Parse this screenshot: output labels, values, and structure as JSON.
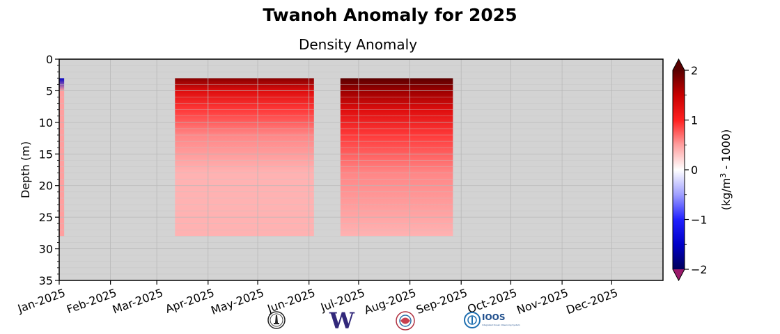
{
  "chart_data": {
    "type": "heatmap",
    "title": "Twanoh Anomaly for 2025",
    "subtitle": "Density Anomaly",
    "ylabel": "Depth (m)",
    "ylim": [
      0,
      35
    ],
    "y_ticks": [
      "0",
      "5",
      "10",
      "15",
      "20",
      "25",
      "30",
      "35"
    ],
    "x_ticks": [
      "Jan-2025",
      "Feb-2025",
      "Mar-2025",
      "Apr-2025",
      "May-2025",
      "Jun-2025",
      "Jul-2025",
      "Aug-2025",
      "Sep-2025",
      "Oct-2025",
      "Nov-2025",
      "Dec-2025"
    ],
    "grid": true,
    "colorbar": {
      "label_prefix": "(kg/m",
      "label_sup": "3",
      "label_suffix": " - 1000)",
      "range": [
        -2,
        2
      ],
      "ticks": [
        "2",
        "1",
        "0",
        "−1",
        "−2"
      ],
      "colors": [
        "#5a0000",
        "#c80000",
        "#ff2020",
        "#ff9f9f",
        "#ffffff",
        "#9f9fff",
        "#2020ff",
        "#0000c8",
        "#00005a"
      ],
      "over_color": "#5a0000",
      "under_color": "#9b1a6b"
    },
    "no_data_color": "#d3d3d3",
    "data_blocks": [
      {
        "name": "early January profile",
        "start": "2025-01-01",
        "end": "2025-01-04",
        "depth_range": [
          3,
          28
        ],
        "profile": [
          {
            "depth": 3,
            "anomaly": -1.5
          },
          {
            "depth": 5,
            "anomaly": 0.5
          },
          {
            "depth": 10,
            "anomaly": 0.5
          },
          {
            "depth": 20,
            "anomaly": 0.5
          },
          {
            "depth": 28,
            "anomaly": 0.5
          }
        ]
      },
      {
        "name": "mid-March to early June",
        "start": "2025-03-12",
        "end": "2025-06-04",
        "depth_range": [
          3,
          28
        ],
        "profile": [
          {
            "depth": 3,
            "anomaly": 1.8
          },
          {
            "depth": 5,
            "anomaly": 1.3
          },
          {
            "depth": 8,
            "anomaly": 0.9
          },
          {
            "depth": 12,
            "anomaly": 0.6
          },
          {
            "depth": 18,
            "anomaly": 0.4
          },
          {
            "depth": 28,
            "anomaly": 0.4
          }
        ]
      },
      {
        "name": "late June to late August",
        "start": "2025-06-20",
        "end": "2025-08-27",
        "depth_range": [
          3,
          28
        ],
        "profile": [
          {
            "depth": 3,
            "anomaly": 2.0
          },
          {
            "depth": 5,
            "anomaly": 1.7
          },
          {
            "depth": 8,
            "anomaly": 1.3
          },
          {
            "depth": 12,
            "anomaly": 0.9
          },
          {
            "depth": 18,
            "anomaly": 0.6
          },
          {
            "depth": 28,
            "anomaly": 0.4
          }
        ]
      }
    ]
  },
  "logos": {
    "w_logo_text": "W",
    "ioos_text": "IOOS",
    "ioos_subtext": "Integrated Ocean Observing System"
  }
}
